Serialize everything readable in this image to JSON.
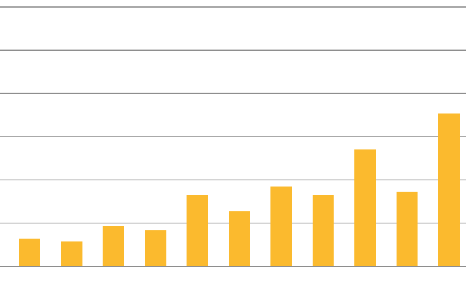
{
  "chart_data": {
    "type": "bar",
    "values": [
      0.64,
      0.58,
      0.93,
      0.83,
      1.66,
      1.27,
      1.85,
      1.66,
      2.7,
      1.73,
      3.53
    ],
    "ylim": [
      0,
      6
    ],
    "grid": true,
    "colors": {
      "bar": "#FBBA2E",
      "grid": "#8E8E8E",
      "axis": "#8E8E8E"
    }
  }
}
